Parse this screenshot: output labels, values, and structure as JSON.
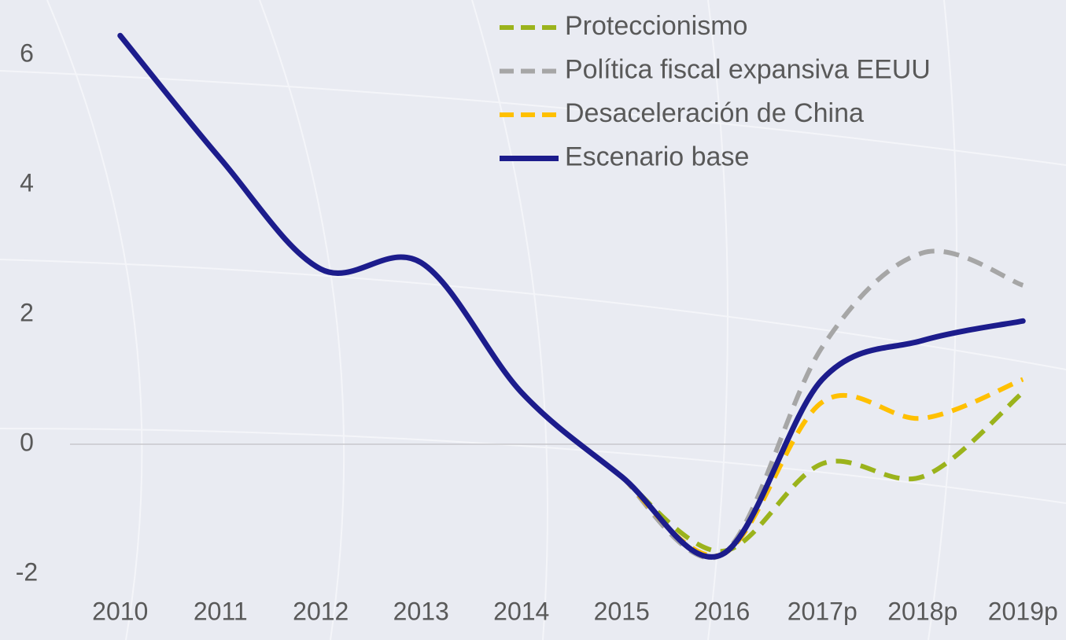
{
  "chart_data": {
    "type": "line",
    "categories": [
      "2010",
      "2011",
      "2012",
      "2013",
      "2014",
      "2015",
      "2016",
      "2017p",
      "2018p",
      "2019p"
    ],
    "series": [
      {
        "name": "Proteccionismo",
        "color": "#9bb31c",
        "dash": true,
        "values": [
          null,
          null,
          null,
          null,
          null,
          -0.5,
          -1.65,
          -0.3,
          -0.5,
          0.8
        ]
      },
      {
        "name": "Política fiscal expansiva EEUU",
        "color": "#a6a6a6",
        "dash": true,
        "values": [
          null,
          null,
          null,
          null,
          null,
          -0.5,
          -1.7,
          1.5,
          2.95,
          2.45
        ]
      },
      {
        "name": "Desaceleración de China",
        "color": "#ffc000",
        "dash": true,
        "values": [
          null,
          null,
          null,
          null,
          null,
          -0.5,
          -1.7,
          0.65,
          0.4,
          1.0
        ]
      },
      {
        "name": "Escenario base",
        "color": "#1c1c8c",
        "dash": false,
        "values": [
          6.3,
          4.4,
          2.7,
          2.8,
          0.8,
          -0.5,
          -1.7,
          1.0,
          1.6,
          1.9
        ]
      }
    ],
    "ylim": [
      -2.2,
      6.8
    ],
    "yticks": [
      -2,
      0,
      2,
      4,
      6
    ],
    "grid": false
  }
}
